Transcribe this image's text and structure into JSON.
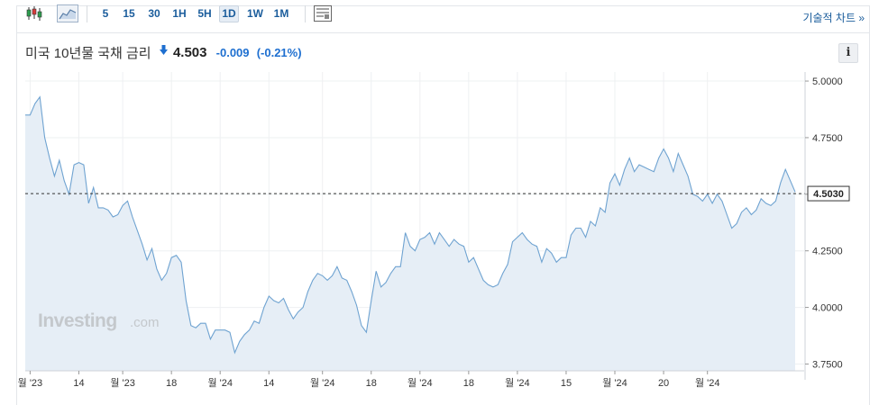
{
  "toolbar": {
    "icons": [
      "candlestick-icon",
      "area-chart-icon",
      "indicator-panel-icon"
    ],
    "periods": [
      "5",
      "15",
      "30",
      "1H",
      "5H",
      "1D",
      "1W",
      "1M"
    ],
    "active_period": "1D",
    "tech_chart_label": "기술적 차트 »"
  },
  "header": {
    "instrument": "미국 10년물 국채 금리",
    "price": "4.503",
    "change": "-0.009",
    "change_pct": "(-0.21%)",
    "direction": "down",
    "down_color": "#1e6fd0",
    "info_label": "i"
  },
  "watermark": {
    "brand": "Investing",
    "suffix": ".com"
  },
  "chart_data": {
    "type": "area",
    "title": "",
    "xlabel": "",
    "ylabel": "",
    "ylim": [
      3.72,
      5.04
    ],
    "yticks": [
      5.0,
      4.75,
      4.5,
      4.25,
      4.0,
      3.75
    ],
    "ytick_labels": [
      "5.0000",
      "4.7500",
      "4.5000",
      "4.2500",
      "4.0000",
      "3.7500"
    ],
    "xtick_labels": [
      "월 '23",
      "14",
      "월 '23",
      "18",
      "월 '24",
      "14",
      "월 '24",
      "18",
      "월 '24",
      "18",
      "월 '24",
      "15",
      "월 '24",
      "20",
      "월 '24"
    ],
    "xtick_index": [
      1,
      11,
      20,
      30,
      40,
      50,
      61,
      71,
      81,
      91,
      101,
      111,
      121,
      131,
      140
    ],
    "current_value": 4.503,
    "current_label": "4.5030",
    "line_color": "#6fa3d1",
    "fill_color": "#e6eef6",
    "grid": true,
    "values": [
      4.85,
      4.85,
      4.9,
      4.93,
      4.75,
      4.66,
      4.58,
      4.65,
      4.56,
      4.5,
      4.63,
      4.64,
      4.63,
      4.46,
      4.53,
      4.44,
      4.44,
      4.43,
      4.4,
      4.41,
      4.45,
      4.47,
      4.4,
      4.34,
      4.28,
      4.21,
      4.26,
      4.17,
      4.12,
      4.15,
      4.22,
      4.23,
      4.2,
      4.03,
      3.92,
      3.91,
      3.93,
      3.93,
      3.86,
      3.9,
      3.9,
      3.9,
      3.89,
      3.8,
      3.85,
      3.88,
      3.9,
      3.94,
      3.93,
      4.0,
      4.05,
      4.03,
      4.02,
      4.04,
      3.99,
      3.95,
      3.98,
      4.0,
      4.07,
      4.12,
      4.15,
      4.14,
      4.12,
      4.14,
      4.18,
      4.13,
      4.12,
      4.07,
      4.01,
      3.92,
      3.89,
      4.03,
      4.16,
      4.09,
      4.11,
      4.15,
      4.18,
      4.18,
      4.33,
      4.27,
      4.25,
      4.3,
      4.31,
      4.33,
      4.28,
      4.33,
      4.3,
      4.27,
      4.3,
      4.28,
      4.27,
      4.2,
      4.22,
      4.17,
      4.12,
      4.1,
      4.09,
      4.1,
      4.15,
      4.19,
      4.29,
      4.31,
      4.33,
      4.3,
      4.28,
      4.27,
      4.2,
      4.26,
      4.24,
      4.2,
      4.22,
      4.22,
      4.32,
      4.35,
      4.35,
      4.31,
      4.38,
      4.36,
      4.44,
      4.42,
      4.55,
      4.59,
      4.54,
      4.61,
      4.66,
      4.6,
      4.63,
      4.62,
      4.61,
      4.6,
      4.66,
      4.7,
      4.66,
      4.6,
      4.68,
      4.63,
      4.58,
      4.5,
      4.49,
      4.47,
      4.5,
      4.46,
      4.5,
      4.47,
      4.41,
      4.35,
      4.37,
      4.42,
      4.44,
      4.41,
      4.43,
      4.48,
      4.46,
      4.45,
      4.47,
      4.55,
      4.61,
      4.56,
      4.51
    ]
  }
}
